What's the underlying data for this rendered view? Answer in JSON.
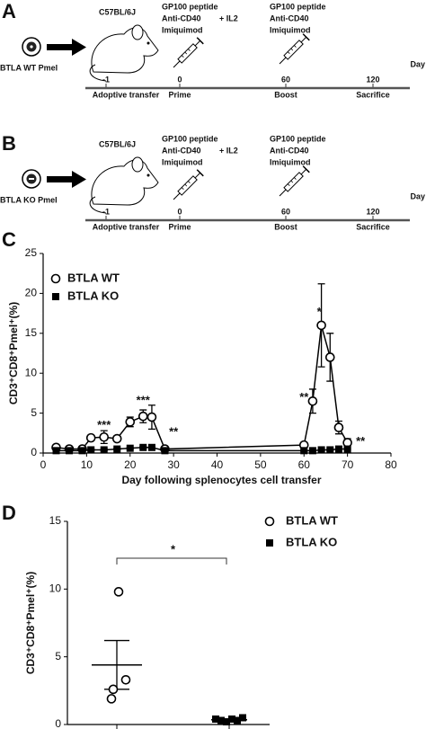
{
  "panel_a": {
    "label": "A",
    "strain": "C57BL/6J",
    "cells": "BTLA WT Pmel",
    "prime": [
      "GP100 peptide",
      "Anti-CD40",
      "+ IL2",
      "Imiquimod"
    ],
    "boost": [
      "GP100 peptide",
      "Anti-CD40",
      "Imiquimod"
    ],
    "axis_label": "Day",
    "days": [
      "-1",
      "0",
      "60",
      "120"
    ],
    "events": [
      "Adoptive transfer",
      "Prime",
      "Boost",
      "Sacrifice"
    ]
  },
  "panel_b": {
    "label": "B",
    "strain": "C57BL/6J",
    "cells": "BTLA KO Pmel",
    "prime": [
      "GP100 peptide",
      "Anti-CD40",
      "+ IL2",
      "Imiquimod"
    ],
    "boost": [
      "GP100 peptide",
      "Anti-CD40",
      "Imiquimod"
    ],
    "axis_label": "Day",
    "days": [
      "-1",
      "0",
      "60",
      "120"
    ],
    "events": [
      "Adoptive transfer",
      "Prime",
      "Boost",
      "Sacrifice"
    ]
  },
  "chart_data": [
    {
      "type": "line",
      "label": "C",
      "y_label": "CD3⁺CD8⁺Pmel⁺(%)",
      "x_label": "Day following splenocytes cell transfer",
      "x": [
        3,
        6,
        9,
        11,
        14,
        17,
        20,
        23,
        25,
        28,
        60,
        62,
        64,
        66,
        68,
        70
      ],
      "series": [
        {
          "name": "BTLA WT",
          "color": "#000000",
          "marker": "open-circle",
          "values": [
            0.7,
            0.5,
            0.5,
            1.9,
            2.0,
            1.8,
            3.9,
            4.6,
            4.5,
            0.5,
            1.0,
            6.5,
            16,
            12,
            3.2,
            1.3
          ],
          "errors": [
            0.2,
            0.2,
            0.2,
            0.3,
            0.8,
            0.3,
            0.6,
            0.8,
            1.5,
            0.2,
            0.3,
            1.5,
            5.2,
            3.0,
            0.8,
            0.5
          ]
        },
        {
          "name": "BTLA KO",
          "color": "#000000",
          "marker": "filled-square",
          "values": [
            0.3,
            0.3,
            0.3,
            0.4,
            0.4,
            0.5,
            0.6,
            0.7,
            0.7,
            0.3,
            0.3,
            0.3,
            0.4,
            0.4,
            0.5,
            0.5
          ],
          "errors": [
            0.1,
            0.1,
            0.1,
            0.1,
            0.1,
            0.1,
            0.1,
            0.1,
            0.1,
            0.1,
            0.1,
            0.1,
            0.1,
            0.1,
            0.1,
            0.1
          ]
        }
      ],
      "annotations": [
        "***",
        "***",
        "**",
        "**",
        "*",
        "**"
      ],
      "xlim": [
        0,
        80
      ],
      "xticks": [
        0,
        10,
        20,
        30,
        40,
        50,
        60,
        70,
        80
      ],
      "ylim": [
        0,
        25
      ],
      "yticks": [
        0,
        5,
        10,
        15,
        20,
        25
      ],
      "legend": "top-left"
    },
    {
      "type": "dot",
      "label": "D",
      "y_label": "CD3⁺CD8⁺Pmel⁺(%)",
      "series": [
        {
          "name": "BTLA WT",
          "color": "#000000",
          "marker": "open-circle",
          "values": [
            9.8,
            2.6,
            3.3,
            1.9
          ],
          "mean": 4.4,
          "sem": 1.8
        },
        {
          "name": "BTLA KO",
          "color": "#000000",
          "marker": "filled-square",
          "values": [
            0.4,
            0.3,
            0.2,
            0.4,
            0.3,
            0.5
          ],
          "mean": 0.35,
          "sem": 0.05
        }
      ],
      "annotation": "*",
      "ylim": [
        0,
        15
      ],
      "yticks": [
        0,
        5,
        10,
        15
      ],
      "legend": "top-right"
    }
  ]
}
